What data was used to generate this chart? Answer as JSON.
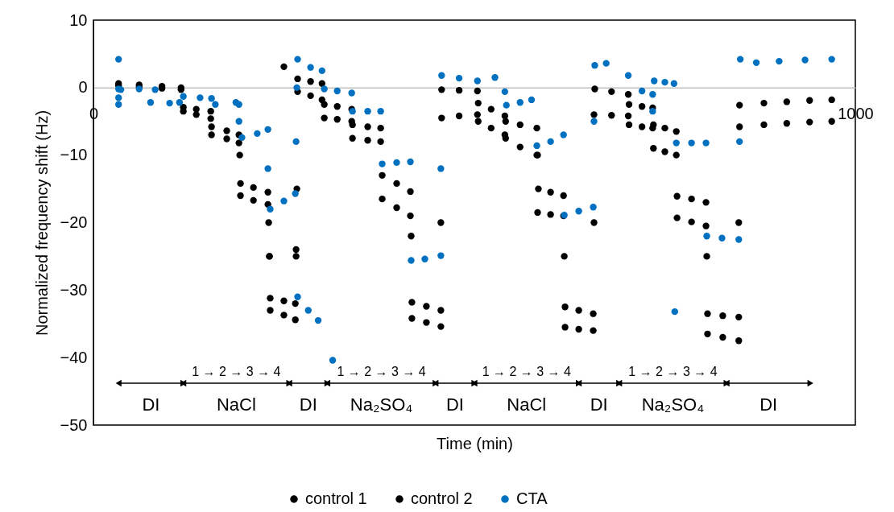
{
  "chart_data": {
    "type": "scatter",
    "xlabel": "Time (min)",
    "ylabel": "Normalized frequency shift (Hz)",
    "xlim": [
      0,
      1000
    ],
    "xticks": [
      0,
      1000
    ],
    "ylim": [
      -50,
      10
    ],
    "yticks": [
      -50,
      -40,
      -30,
      -20,
      -10,
      0,
      10
    ],
    "grid": false,
    "legend": "bottom",
    "marker": "circle",
    "series": [
      {
        "name": "control 1",
        "color": "#000000",
        "x": [
          33,
          60,
          90,
          115,
          118,
          135,
          154,
          155,
          175,
          191,
          193,
          210,
          229,
          231,
          232,
          250,
          265,
          266,
          268,
          285,
          300,
          303,
          320,
          339,
          340,
          360,
          377,
          379,
          398,
          416,
          418,
          437,
          456,
          457,
          480,
          504,
          505,
          522,
          540,
          541,
          560,
          582,
          583,
          600,
          617,
          619,
          637,
          656,
          657,
          680,
          702,
          703,
          720,
          734,
          735,
          750,
          765,
          766,
          785,
          804,
          806,
          826,
          847,
          848,
          880,
          910,
          940,
          969
        ],
        "values": [
          0.3,
          0.1,
          -0.1,
          -0.3,
          -3.5,
          -4,
          -4.6,
          -7,
          -7.6,
          -8.2,
          -16,
          -16.7,
          -17.3,
          -25,
          -33,
          -33.7,
          -34.4,
          -24,
          -0.6,
          -1.2,
          -1.8,
          -4.5,
          -4.7,
          -5,
          -7.5,
          -7.8,
          -8,
          -16.5,
          -17.8,
          -19,
          -34.2,
          -34.8,
          -35.4,
          -4.5,
          -4.2,
          -4,
          -5,
          -6,
          -7,
          -7.5,
          -8.8,
          -10,
          -18.5,
          -18.8,
          -19,
          -35.5,
          -35.8,
          -36,
          -4,
          -4.1,
          -4.2,
          -5.5,
          -5.8,
          -6,
          -9,
          -9.5,
          -10,
          -19.3,
          -19.9,
          -20.5,
          -36.5,
          -37,
          -37.5,
          -5.8,
          -5.5,
          -5.3,
          -5.1,
          -5
        ]
      },
      {
        "name": "control 2",
        "color": "#000000",
        "x": [
          33,
          60,
          90,
          115,
          118,
          135,
          154,
          155,
          175,
          191,
          192,
          193,
          210,
          229,
          230,
          231,
          232,
          250,
          265,
          266,
          267,
          268,
          285,
          300,
          303,
          320,
          339,
          340,
          360,
          377,
          379,
          398,
          416,
          417,
          418,
          437,
          456,
          456,
          457,
          480,
          504,
          505,
          522,
          540,
          541,
          560,
          582,
          583,
          584,
          600,
          617,
          618,
          619,
          637,
          656,
          657,
          658,
          680,
          702,
          703,
          720,
          734,
          735,
          750,
          765,
          766,
          785,
          804,
          805,
          806,
          826,
          847,
          847,
          848,
          880,
          910,
          940,
          969,
          250
        ],
        "values": [
          0.6,
          0.4,
          0.2,
          0,
          -2.9,
          -3.2,
          -3.5,
          -5.8,
          -6.4,
          -7,
          -10,
          -14.2,
          -14.8,
          -15.5,
          -20,
          -25,
          -31.2,
          -31.6,
          -32,
          -25,
          -15,
          1.3,
          0.9,
          0.6,
          -2.5,
          -2.8,
          -3.2,
          -5.5,
          -5.8,
          -6,
          -13,
          -14.2,
          -15.4,
          -22,
          -31.8,
          -32.4,
          -33,
          -20,
          -0.3,
          -0.4,
          -0.5,
          -2.3,
          -3.2,
          -4.2,
          -5,
          -5.5,
          -6,
          -10,
          -15,
          -15.5,
          -16,
          -25,
          -32.5,
          -33,
          -33.5,
          -20,
          -0.2,
          -0.6,
          -1,
          -2.5,
          -2.8,
          -3,
          -5.5,
          -6,
          -6.5,
          -16.1,
          -16.5,
          -17,
          -25,
          -33.5,
          -33.8,
          -34,
          -20,
          -2.6,
          -2.3,
          -2.1,
          -1.9,
          -1.8,
          3.1
        ]
      },
      {
        "name": "CTA",
        "color": "#0070c0",
        "x": [
          33,
          33,
          33,
          33,
          36,
          60,
          81,
          75,
          100,
          113,
          118,
          140,
          155,
          160,
          187,
          191,
          191,
          195,
          215,
          229,
          229,
          232,
          250,
          265,
          266,
          267,
          268,
          285,
          300,
          303,
          320,
          339,
          340,
          360,
          377,
          379,
          398,
          416,
          417,
          435,
          456,
          456,
          457,
          480,
          504,
          527,
          540,
          542,
          560,
          575,
          582,
          600,
          617,
          618,
          637,
          656,
          657,
          658,
          673,
          702,
          720,
          734,
          734,
          736,
          750,
          762,
          765,
          785,
          804,
          805,
          825,
          847,
          848,
          849,
          870,
          900,
          934,
          969,
          268,
          282,
          295,
          314,
          763
        ],
        "values": [
          4.2,
          -0.2,
          -1.5,
          -2.5,
          -0.3,
          -0.2,
          -0.3,
          -2.2,
          -2.3,
          -2.2,
          -1.3,
          -1.5,
          -1.6,
          -2.5,
          -2.2,
          -2.5,
          -5,
          -7.4,
          -6.8,
          -6.2,
          -12,
          -18,
          -16.8,
          -15.7,
          -8,
          0,
          4.2,
          3,
          2.5,
          -0.2,
          -0.5,
          -0.8,
          -3.5,
          -3.5,
          -3.5,
          -11.3,
          -11.1,
          -11,
          -25.6,
          -25.4,
          -24.9,
          -12,
          1.8,
          1.4,
          1,
          1.5,
          -0.6,
          -2.6,
          -2.2,
          -1.8,
          -8.6,
          -8,
          -7,
          -18.9,
          -18.3,
          -17.7,
          -5,
          3.3,
          3.6,
          1.8,
          -0.5,
          -1,
          -3.5,
          1,
          0.8,
          0.6,
          -8.2,
          -8.2,
          -8.2,
          -22,
          -22.3,
          -22.5,
          -8,
          4.2,
          3.7,
          3.9,
          4.1,
          4.2,
          -31,
          -33,
          -34.5,
          -40.4,
          -33.2
        ]
      }
    ],
    "annotations": [
      "1 → 2 → 3 → 4",
      "1 → 2 → 3 → 4",
      "1 → 2 → 3 → 4",
      "1 → 2 → 3 → 4",
      "DI",
      "NaCl",
      "DI",
      "Na₂SO₄",
      "DI",
      "NaCl",
      "DI",
      "Na₂SO₄",
      "DI"
    ]
  }
}
